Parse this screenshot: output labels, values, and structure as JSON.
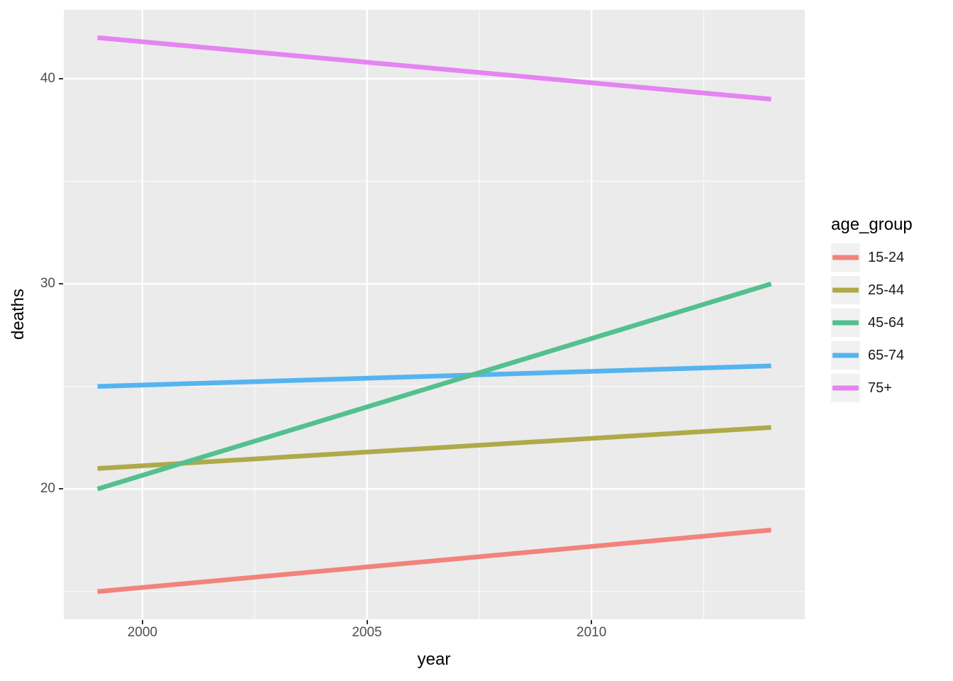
{
  "chart_data": {
    "type": "line",
    "title": "",
    "xlabel": "year",
    "ylabel": "deaths",
    "legend_title": "age_group",
    "legend_position": "right",
    "x": [
      1999,
      2014
    ],
    "series": [
      {
        "name": "15-24",
        "color": "#F2837B",
        "values": [
          15,
          18
        ]
      },
      {
        "name": "25-44",
        "color": "#AFAA49",
        "values": [
          21,
          23
        ]
      },
      {
        "name": "45-64",
        "color": "#53C08D",
        "values": [
          20,
          30
        ]
      },
      {
        "name": "65-74",
        "color": "#55B4F0",
        "values": [
          25,
          26
        ]
      },
      {
        "name": "75+",
        "color": "#E584F2",
        "values": [
          42,
          39
        ]
      }
    ],
    "draw_order": [
      4,
      3,
      1,
      2,
      0
    ],
    "xlim": [
      1998.25,
      2014.75
    ],
    "ylim": [
      13.65,
      43.35
    ],
    "x_ticks": [
      2000,
      2005,
      2010
    ],
    "y_ticks": [
      20,
      30,
      40
    ],
    "x_minor_ticks": [
      2002.5,
      2007.5,
      2012.5
    ],
    "y_minor_ticks": [
      15,
      25,
      35
    ],
    "grid": "major+minor",
    "panel_background": "#EBEBEB",
    "gridline_color": "#FFFFFF",
    "tick_mark_color": "#333333",
    "tick_label_color": "#4D4D4D",
    "axis_title_color": "#000000",
    "legend_key_background": "#F1F1F1",
    "line_width": 6.6
  }
}
